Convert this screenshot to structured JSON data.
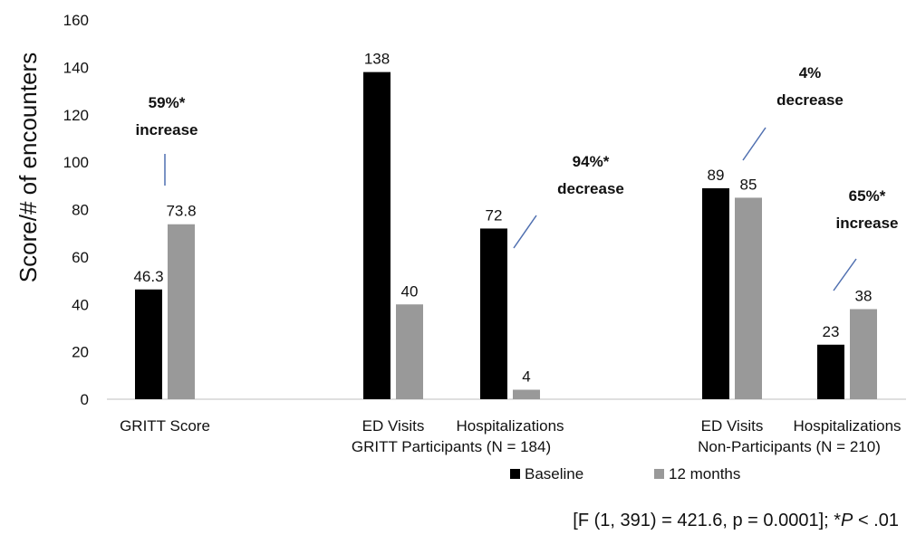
{
  "chart_data": {
    "type": "bar",
    "ylabel": "Score/# of encounters",
    "ylim": [
      0,
      160
    ],
    "yticks": [
      "0",
      "20",
      "40",
      "60",
      "80",
      "100",
      "120",
      "140",
      "160"
    ],
    "grid": false,
    "legend_position": "bottom",
    "categories": [
      "GRITT Score",
      "ED Visits",
      "Hospitalizations",
      "ED Visits",
      "Hospitalizations"
    ],
    "group_labels": [
      "GRITT Participants (N = 184)",
      "Non-Participants  (N = 210)"
    ],
    "series": [
      {
        "name": "Baseline",
        "color": "#000000",
        "values": [
          46.3,
          138,
          72,
          89,
          23
        ],
        "labels": [
          "46.3",
          "138",
          "72",
          "89",
          "23"
        ]
      },
      {
        "name": "12 months",
        "color": "#999999",
        "values": [
          73.8,
          40,
          4,
          85,
          38
        ],
        "labels": [
          "73.8",
          "40",
          "4",
          "85",
          "38"
        ]
      }
    ],
    "annotations": [
      {
        "category_index": 0,
        "lines": [
          "59%*",
          "increase"
        ]
      },
      {
        "category_index": 2,
        "lines": [
          "94%*",
          "decrease"
        ]
      },
      {
        "category_index": 3,
        "lines": [
          "4%",
          "decrease"
        ]
      },
      {
        "category_index": 4,
        "lines": [
          "65%*",
          "increase"
        ]
      }
    ],
    "footnote": {
      "prefix": "[F (1, 391) = 421.6, p = 0.0001]; *",
      "p_symbol": "P",
      "suffix": " < .01"
    }
  }
}
